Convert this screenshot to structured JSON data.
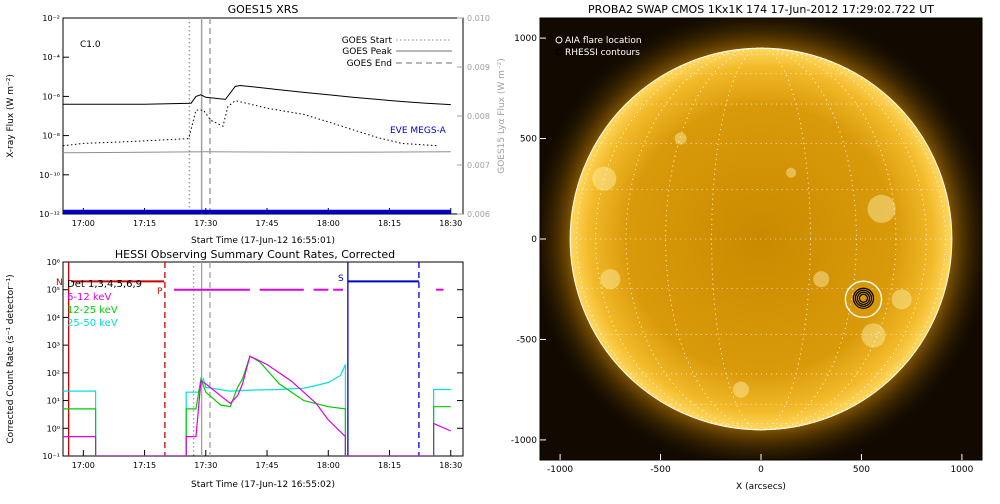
{
  "chart_data": [
    {
      "type": "line",
      "title": "GOES15 XRS",
      "xlabel": "Start Time (17-Jun-12 16:55:01)",
      "ylabel": "X-ray Flux (W m⁻²)",
      "y2label": "GOES15 Lyα Flux (W m⁻²)",
      "x_ticks": [
        "17:00",
        "17:15",
        "17:30",
        "17:45",
        "18:00",
        "18:15",
        "18:30"
      ],
      "x_tick_hours": [
        17.0,
        17.25,
        17.5,
        17.75,
        18.0,
        18.25,
        18.5
      ],
      "xlim": [
        16.917,
        18.55
      ],
      "y_scale": "log",
      "ylim": [
        1e-12,
        0.01
      ],
      "y_ticks": [
        "10⁻²",
        "10⁻⁴",
        "10⁻⁶",
        "10⁻⁸",
        "10⁻¹⁰",
        "10⁻¹²"
      ],
      "y_tick_values": [
        0.01,
        0.0001,
        1e-06,
        1e-08,
        1e-10,
        1e-12
      ],
      "y2lim": [
        0.006,
        0.01
      ],
      "y2_ticks": [
        "0.010",
        "0.009",
        "0.008",
        "0.007",
        "0.006"
      ],
      "y2_tick_values": [
        0.01,
        0.009,
        0.008,
        0.007,
        0.006
      ],
      "annotations": [
        {
          "text": "C1.0",
          "color": "#000000"
        },
        {
          "text": "EVE MEGS-A",
          "color": "#0000cc"
        }
      ],
      "legend": {
        "placement": "top-right",
        "entries": [
          "GOES Start",
          "GOES Peak",
          "GOES End"
        ]
      },
      "vlines": [
        {
          "name": "GOES Start",
          "x": 17.433,
          "style": "dotted",
          "color": "#a0a0a0"
        },
        {
          "name": "GOES Peak",
          "x": 17.483,
          "style": "solid",
          "color": "#a0a0a0"
        },
        {
          "name": "GOES End",
          "x": 17.517,
          "style": "dashed",
          "color": "#a0a0a0"
        }
      ],
      "series": [
        {
          "color": "#000000",
          "style": "solid",
          "x": [
            16.917,
            17.0,
            17.25,
            17.44,
            17.46,
            17.48,
            17.5,
            17.58,
            17.6,
            17.62,
            17.64,
            17.7,
            17.8,
            17.9,
            18.0,
            18.1,
            18.2,
            18.3,
            18.4,
            18.5
          ],
          "y": [
            4e-07,
            4e-07,
            4e-07,
            4.5e-07,
            1e-06,
            1.2e-06,
            9e-07,
            7e-07,
            1.5e-06,
            3.2e-06,
            3.6e-06,
            3e-06,
            2.2e-06,
            1.6e-06,
            1.2e-06,
            9e-07,
            7e-07,
            5.5e-07,
            4.5e-07,
            3.8e-07
          ]
        },
        {
          "color": "#000000",
          "style": "dotted",
          "x": [
            16.917,
            17.0,
            17.2,
            17.43,
            17.46,
            17.49,
            17.52,
            17.57,
            17.59,
            17.62,
            17.65,
            17.75,
            17.9,
            18.0,
            18.1,
            18.2,
            18.3,
            18.45
          ],
          "y": [
            3e-09,
            4e-09,
            5e-09,
            7e-09,
            2e-07,
            2e-07,
            6e-08,
            3e-08,
            3e-07,
            6e-07,
            5e-07,
            2.5e-07,
            1.2e-07,
            5e-08,
            2e-08,
            8e-09,
            4e-09,
            3e-09
          ]
        },
        {
          "color": "#909090",
          "style": "solid",
          "x": [
            16.917,
            17.5,
            18.0,
            18.5
          ],
          "y2": [
            0.00725,
            0.00727,
            0.00726,
            0.00727
          ]
        },
        {
          "color": "#0000cc",
          "style": "solid",
          "width": 4,
          "x": [
            16.917,
            18.5
          ],
          "y": [
            1.3e-12,
            1.3e-12
          ]
        }
      ]
    },
    {
      "type": "line",
      "title": "HESSI Observing Summary Count Rates, Corrected",
      "xlabel": "Start Time (17-Jun-12 16:55:02)",
      "ylabel": "Corrected Count Rate (s⁻¹ detector⁻¹)",
      "x_ticks": [
        "17:00",
        "17:15",
        "17:30",
        "17:45",
        "18:00",
        "18:15",
        "18:30"
      ],
      "x_tick_hours": [
        17.0,
        17.25,
        17.5,
        17.75,
        18.0,
        18.25,
        18.5
      ],
      "xlim": [
        16.917,
        18.55
      ],
      "y_scale": "log",
      "ylim": [
        0.1,
        1000000.0
      ],
      "y_ticks": [
        "10⁶",
        "10⁵",
        "10⁴",
        "10³",
        "10²",
        "10¹",
        "10⁰",
        "10⁻¹"
      ],
      "y_tick_values": [
        1000000.0,
        100000.0,
        10000.0,
        1000.0,
        100.0,
        10.0,
        1,
        0.1
      ],
      "legend": {
        "placement": "top-left",
        "entries": [
          {
            "text": "Det 1,3,4,5,6,9",
            "color": "#cc0000"
          },
          {
            "text": "6-12 keV",
            "color": "#e000e0"
          },
          {
            "text": "12-25 keV",
            "color": "#00cc00"
          },
          {
            "text": "25-50 keV",
            "color": "#00e0e0"
          }
        ]
      },
      "flag_labels": [
        {
          "text": "N",
          "color": "#cc0000"
        },
        {
          "text": "P",
          "color": "#cc0000"
        },
        {
          "text": "S",
          "color": "#0000cc"
        }
      ],
      "vlines": [
        {
          "x": 16.94,
          "style": "solid",
          "color": "#cc0000"
        },
        {
          "x": 17.333,
          "style": "dashed",
          "color": "#cc0000"
        },
        {
          "x": 17.45,
          "style": "dotted",
          "color": "#a0a0a0"
        },
        {
          "x": 17.483,
          "style": "solid",
          "color": "#a0a0a0"
        },
        {
          "x": 17.517,
          "style": "dashed",
          "color": "#a0a0a0"
        },
        {
          "x": 18.08,
          "style": "solid",
          "color": "#0000cc"
        },
        {
          "x": 18.37,
          "style": "dashed",
          "color": "#0000cc"
        }
      ],
      "flag_bars": [
        {
          "color": "#cc0000",
          "y": 200000.0,
          "segments": [
            [
              16.95,
              17.33
            ]
          ]
        },
        {
          "color": "#e000e0",
          "y": 100000.0,
          "segments": [
            [
              17.37,
              17.68
            ],
            [
              17.72,
              17.9
            ],
            [
              17.94,
              18.0
            ],
            [
              18.02,
              18.06
            ],
            [
              18.44,
              18.47
            ]
          ]
        },
        {
          "color": "#0000cc",
          "y": 200000.0,
          "segments": [
            [
              18.08,
              18.37
            ]
          ]
        }
      ],
      "series": [
        {
          "name": "25-50 keV",
          "color": "#00e0e0",
          "x": [
            16.917,
            17.05,
            17.05,
            17.42,
            17.42,
            17.47,
            17.49,
            17.5,
            17.6,
            17.7,
            17.8,
            17.9,
            17.95,
            18.0,
            18.05,
            18.07,
            18.07,
            18.43,
            18.43,
            18.5
          ],
          "y": [
            22,
            22,
            0.1,
            0.1,
            20,
            20,
            60,
            30,
            22,
            24,
            25,
            28,
            35,
            45,
            80,
            200,
            0.1,
            0.1,
            25,
            25
          ]
        },
        {
          "name": "12-25 keV",
          "color": "#00cc00",
          "x": [
            16.917,
            17.05,
            17.05,
            17.42,
            17.42,
            17.46,
            17.48,
            17.5,
            17.56,
            17.6,
            17.63,
            17.65,
            17.68,
            17.72,
            17.8,
            17.9,
            18.0,
            18.07,
            18.07,
            18.43,
            18.43,
            18.5
          ],
          "y": [
            5,
            5,
            0.1,
            0.1,
            5,
            5,
            60,
            20,
            7,
            6,
            30,
            60,
            400,
            250,
            40,
            10,
            6,
            5,
            0.1,
            0.1,
            6,
            6
          ]
        },
        {
          "name": "6-12 keV",
          "color": "#e000e0",
          "x": [
            16.917,
            17.05,
            17.05,
            17.42,
            17.42,
            17.46,
            17.48,
            17.5,
            17.56,
            17.6,
            17.63,
            17.65,
            17.68,
            17.75,
            17.85,
            17.95,
            18.0,
            18.07,
            18.07,
            18.43,
            18.43,
            18.5
          ],
          "y": [
            0.5,
            0.5,
            0.1,
            0.1,
            0.5,
            0.5,
            50,
            40,
            15,
            8,
            15,
            40,
            400,
            200,
            50,
            8,
            2,
            0.5,
            0.1,
            0.1,
            1.5,
            0.8
          ]
        }
      ]
    },
    {
      "type": "image",
      "title": "PROBA2 SWAP CMOS 1Kx1K 174 17-Jun-2012 17:29:02.722 UT",
      "xlabel": "X (arcsecs)",
      "ylabel": "",
      "xlim": [
        -1100,
        1100
      ],
      "ylim": [
        -1100,
        1100
      ],
      "x_ticks": [
        "-1000",
        "-500",
        "0",
        "500",
        "1000"
      ],
      "x_tick_values": [
        -1000,
        -500,
        0,
        500,
        1000
      ],
      "y_ticks": [
        "1000",
        "500",
        "0",
        "-500",
        "-1000"
      ],
      "y_tick_values": [
        1000,
        500,
        0,
        -500,
        -1000
      ],
      "legend": {
        "placement": "top-left",
        "entries": [
          "AIA flare location",
          "RHESSI contours"
        ]
      },
      "solar_radius_arcsec": 950,
      "flare_location": {
        "x": 510,
        "y": -300,
        "radius_arcsec": 90
      },
      "rhessi_contours": {
        "x": 510,
        "y": -295,
        "radii_arcsec": [
          20,
          30,
          40,
          50
        ]
      }
    }
  ]
}
